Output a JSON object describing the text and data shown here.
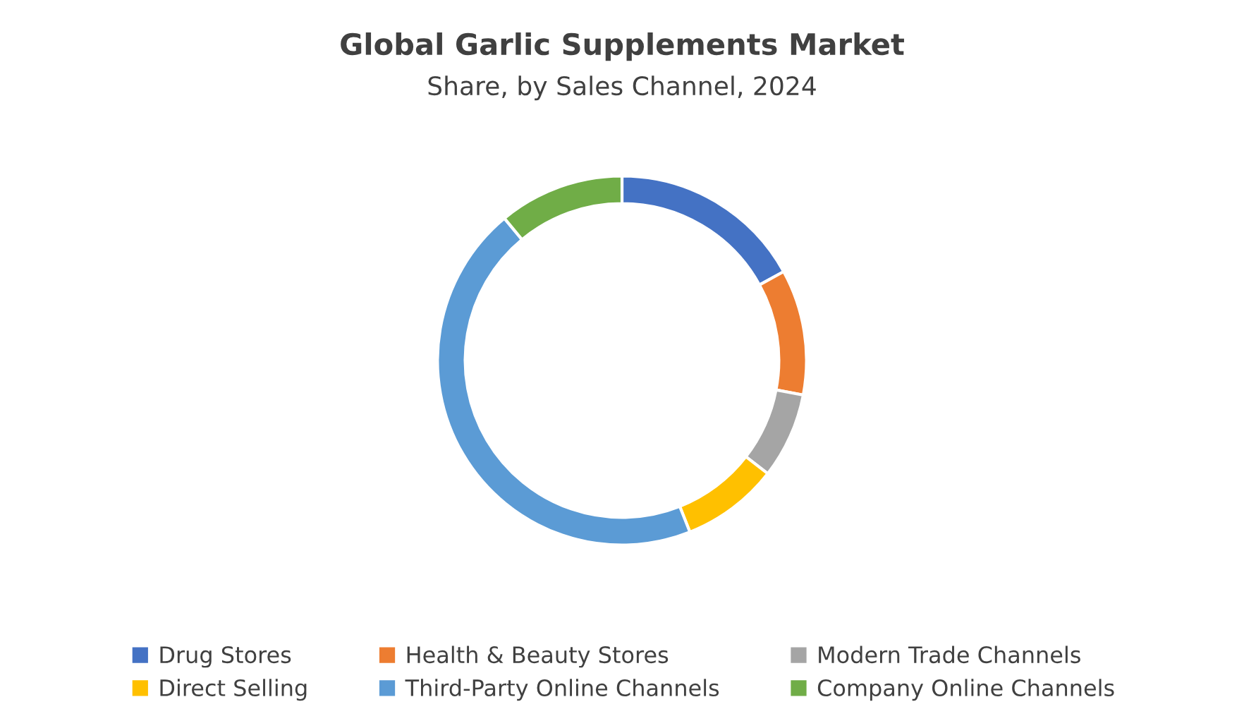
{
  "chart_data": {
    "type": "donut",
    "title": "Global Garlic Supplements Market",
    "subtitle": "Share, by Sales Channel, 2024",
    "categories": [
      "Drug Stores",
      "Health & Beauty Stores",
      "Modern Trade Channels",
      "Direct Selling",
      "Third-Party Online Channels",
      "Company Online Channels"
    ],
    "values": [
      17,
      11,
      7.5,
      8.5,
      45,
      11
    ],
    "colors": [
      "#4472c4",
      "#ed7d31",
      "#a5a5a5",
      "#ffc000",
      "#5b9bd5",
      "#70ad47"
    ],
    "legend": "bottom"
  }
}
